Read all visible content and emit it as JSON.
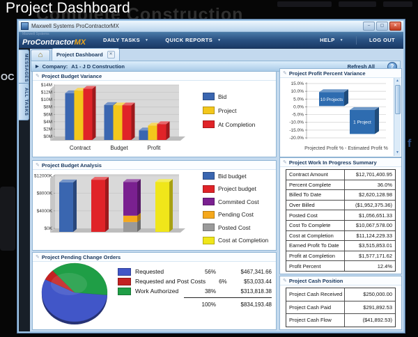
{
  "page": {
    "title": "Project Dashboard",
    "watermark": "Complete Construction"
  },
  "background": {
    "oc_text": "OC",
    "fb_letter": "f"
  },
  "icons": {
    "minimize": "–",
    "restore": "▢",
    "close": "✕",
    "dropdown": "▼",
    "expand": "▶",
    "tab_close": "✕",
    "home": "⌂",
    "pencil": "✎",
    "help": "?",
    "scroll_up": "▲",
    "scroll_down": "▼"
  },
  "window": {
    "title": "Maxwell Systems ProContractorMX"
  },
  "navbar": {
    "brand": {
      "prefix": "Maxwell Systems",
      "name": "ProContractor",
      "suffix": "MX"
    },
    "menus": [
      {
        "label": "DAILY TASKS"
      },
      {
        "label": "QUICK REPORTS"
      }
    ],
    "right_menus": [
      {
        "label": "HELP"
      },
      {
        "label": "LOG OUT"
      }
    ]
  },
  "side_tabs": [
    {
      "label": "MESSAGES"
    },
    {
      "label": "ALL TASKS"
    }
  ],
  "tabs": {
    "active": "Project Dashboard"
  },
  "company_bar": {
    "label": "Company:",
    "value": "A1 - J D Construction",
    "refresh": "Refresh All"
  },
  "chart_data": [
    {
      "id": "budget_variance",
      "type": "bar",
      "title": "Project Budget Variance",
      "categories": [
        "Contract",
        "Budget",
        "Profit"
      ],
      "series": [
        {
          "name": "Bid",
          "color": "#3a66b0",
          "values": [
            12.7,
            9.5,
            2.6
          ]
        },
        {
          "name": "Project",
          "color": "#f3c71c",
          "values": [
            13.4,
            9.4,
            3.9
          ]
        },
        {
          "name": "At Completion",
          "color": "#e02328",
          "values": [
            13.9,
            9.4,
            4.3
          ]
        }
      ],
      "ylim": [
        0,
        14
      ],
      "yticks": [
        "$0M",
        "$2M",
        "$4M",
        "$6M",
        "$8M",
        "$10M",
        "$12M",
        "$14M"
      ],
      "ytick_values": [
        0,
        2,
        4,
        6,
        8,
        10,
        12,
        14
      ],
      "legend_position": "right",
      "grid": true
    },
    {
      "id": "profit_percent_variance",
      "type": "bar",
      "subtype": "floating-range-boxes",
      "title": "Project Profit Percent Variance",
      "boxes": [
        {
          "label": "10 Projects",
          "from": 0.5,
          "to": 9.5
        },
        {
          "label": "1 Project",
          "from": -17.5,
          "to": -2.0
        }
      ],
      "color": "#2e6cb0",
      "ylim": [
        -20,
        15
      ],
      "yticks": [
        "15.0%",
        "10.0%",
        "5.0%",
        "0.0%",
        "-5.0%",
        "-10.0%",
        "-15.0%",
        "-20.0%"
      ],
      "ytick_values": [
        15,
        10,
        5,
        0,
        -5,
        -10,
        -15,
        -20
      ],
      "xlabel": "Projected Profit % - Estimated Profit %",
      "grid": true
    },
    {
      "id": "budget_analysis",
      "type": "bar",
      "subtype": "stacked-3d",
      "title": "Project Budget Analysis",
      "bars": [
        {
          "segments": [
            {
              "name": "Bid budget",
              "value": 11300
            }
          ]
        },
        {
          "segments": [
            {
              "name": "Project budget",
              "value": 11900
            }
          ]
        },
        {
          "segments": [
            {
              "name": "Posted Cost",
              "value": 2250
            },
            {
              "name": "Pending Cost",
              "value": 1450
            },
            {
              "name": "Commited Cost",
              "value": 7700
            }
          ]
        },
        {
          "segments": [
            {
              "name": "Cost at Completion",
              "value": 11400
            }
          ]
        }
      ],
      "legend": [
        "Bid budget",
        "Project budget",
        "Commited Cost",
        "Pending Cost",
        "Posted Cost",
        "Cost at Completion"
      ],
      "colors": {
        "Bid budget": "#3a66b0",
        "Project budget": "#e02328",
        "Commited Cost": "#7a2090",
        "Pending Cost": "#f5a81c",
        "Posted Cost": "#9a9a9a",
        "Cost at Completion": "#f0e61a"
      },
      "ylim": [
        0,
        12400
      ],
      "yticks": [
        "$0K",
        "$4000K",
        "$8000K",
        "$12000K"
      ],
      "ytick_values": [
        0,
        4000,
        8000,
        12000
      ],
      "legend_position": "right",
      "grid": true
    },
    {
      "id": "pending_change_orders",
      "type": "pie",
      "title": "Project Pending Change Orders",
      "slices": [
        {
          "label": "Requested",
          "pct": 56,
          "pct_label": "56%",
          "amount": "$467,341.66",
          "color": "#4156c8"
        },
        {
          "label": "Requested and Post Costs",
          "pct": 6,
          "pct_label": "6%",
          "amount": "$53,033.44",
          "color": "#c32222"
        },
        {
          "label": "Work Authorized",
          "pct": 38,
          "pct_label": "38%",
          "amount": "$313,818.38",
          "color": "#1f9e46"
        }
      ],
      "total": {
        "pct": "100%",
        "amount": "$834,193.48"
      },
      "start_angle_deg_cw_from_top": 95
    },
    {
      "id": "wip_summary",
      "type": "table",
      "title": "Project Work In Progress Summary",
      "rows": [
        [
          "Contract Amount",
          "$12,701,400.95"
        ],
        [
          "Percent Complete",
          "36.0%"
        ],
        [
          "Billed To Date",
          "$2,620,128.98"
        ],
        [
          "Over Billed",
          "($1,952,375.36)"
        ],
        [
          "Posted Cost",
          "$1,056,651.33"
        ],
        [
          "Cost To Complete",
          "$10,067,578.00"
        ],
        [
          "Cost at Completion",
          "$11,124,229.33"
        ],
        [
          "Earned Profit To Date",
          "$3,515,853.01"
        ],
        [
          "Profit at Completion",
          "$1,577,171.62"
        ],
        [
          "Profit Percent",
          "12.4%"
        ]
      ]
    },
    {
      "id": "cash_position",
      "type": "table",
      "title": "Project Cash Position",
      "rows": [
        [
          "Project Cash Received",
          "$250,000.00"
        ],
        [
          "Project Cash Paid",
          "$291,892.53"
        ],
        [
          "Project Cash Flow",
          "($41,892.53)"
        ]
      ]
    }
  ]
}
